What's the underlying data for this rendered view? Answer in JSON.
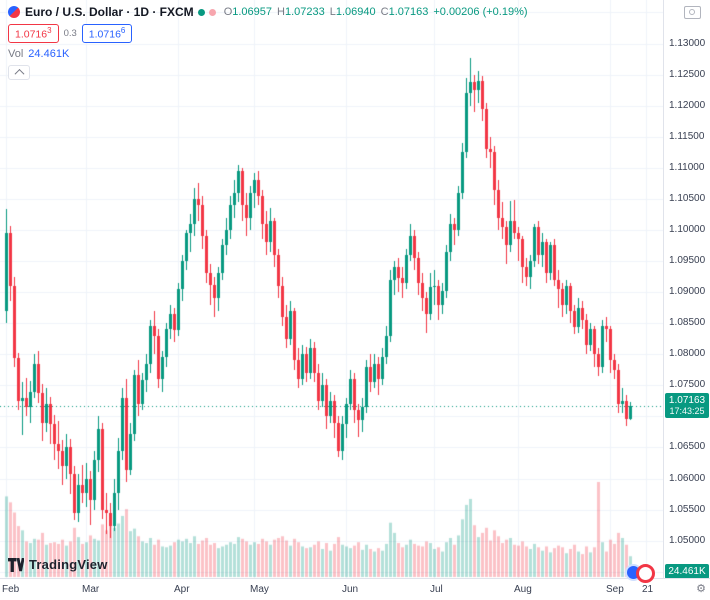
{
  "header": {
    "title": "Euro / U.S. Dollar · 1D · FXCM",
    "ohlc": {
      "open_label": "O",
      "open": "1.06957",
      "high_label": "H",
      "high": "1.07233",
      "low_label": "L",
      "low": "1.06940",
      "close_label": "C",
      "close": "1.07163",
      "change": "+0.00206 (+0.19%)"
    }
  },
  "quote_panel": {
    "bid": "1.0716",
    "bid_sup": "3",
    "spread": "0.3",
    "ask": "1.0716",
    "ask_sup": "6"
  },
  "volume_row": {
    "label": "Vol",
    "value": "24.461K"
  },
  "last_price": {
    "value": "1.07163",
    "countdown": "17:43:25"
  },
  "volume_axis_label": "24.461K",
  "branding": {
    "logo_text": "TradingView"
  },
  "colors": {
    "up": "#089981",
    "down": "#f23645",
    "accent_blue": "#2962ff",
    "muted": "#787b86",
    "grid": "#f0f3fa",
    "text": "#131722"
  },
  "chart_data": {
    "type": "candlestick",
    "symbol": "EUR/USD",
    "interval": "1D",
    "source": "FXCM",
    "visible_price_range": {
      "from": 1.044,
      "to": 1.137
    },
    "price_tick_step": 0.005,
    "price_ticks": [
      1.13,
      1.125,
      1.12,
      1.115,
      1.11,
      1.105,
      1.1,
      1.095,
      1.09,
      1.085,
      1.08,
      1.075,
      1.07,
      1.065,
      1.06,
      1.055,
      1.05
    ],
    "months": [
      {
        "label": "Feb",
        "index": 0
      },
      {
        "label": "Mar",
        "index": 20
      },
      {
        "label": "Apr",
        "index": 43
      },
      {
        "label": "May",
        "index": 62
      },
      {
        "label": "Jun",
        "index": 85
      },
      {
        "label": "Jul",
        "index": 107
      },
      {
        "label": "Aug",
        "index": 128
      },
      {
        "label": "Sep",
        "index": 151
      },
      {
        "label": "21",
        "index": 160
      }
    ],
    "columns": [
      "open",
      "high",
      "low",
      "close",
      "volume_k"
    ],
    "candles": [
      [
        1.087,
        1.1033,
        1.085,
        1.0995,
        95
      ],
      [
        1.0995,
        1.1007,
        1.0885,
        1.091,
        88
      ],
      [
        1.091,
        1.0925,
        1.078,
        1.0794,
        76
      ],
      [
        1.0794,
        1.0802,
        1.071,
        1.0725,
        60
      ],
      [
        1.0725,
        1.0755,
        1.067,
        1.073,
        55
      ],
      [
        1.073,
        1.0762,
        1.07,
        1.0715,
        42
      ],
      [
        1.0715,
        1.0757,
        1.069,
        1.074,
        40
      ],
      [
        1.074,
        1.08,
        1.073,
        1.0785,
        45
      ],
      [
        1.0785,
        1.0805,
        1.0722,
        1.0737,
        44
      ],
      [
        1.0737,
        1.0752,
        1.066,
        1.069,
        52
      ],
      [
        1.069,
        1.0745,
        1.0675,
        1.072,
        38
      ],
      [
        1.072,
        1.0732,
        1.0656,
        1.0688,
        40
      ],
      [
        1.0688,
        1.0702,
        1.063,
        1.0655,
        41
      ],
      [
        1.0655,
        1.0692,
        1.0615,
        1.0645,
        39
      ],
      [
        1.0645,
        1.0662,
        1.059,
        1.062,
        44
      ],
      [
        1.062,
        1.0672,
        1.06,
        1.065,
        37
      ],
      [
        1.065,
        1.0663,
        1.0575,
        1.0608,
        42
      ],
      [
        1.0608,
        1.062,
        1.0533,
        1.0545,
        58
      ],
      [
        1.0545,
        1.0607,
        1.053,
        1.059,
        47
      ],
      [
        1.059,
        1.0622,
        1.056,
        1.0577,
        39
      ],
      [
        1.0577,
        1.0625,
        1.0555,
        1.06,
        41
      ],
      [
        1.06,
        1.0612,
        1.0525,
        1.0566,
        49
      ],
      [
        1.0566,
        1.0645,
        1.055,
        1.063,
        45
      ],
      [
        1.063,
        1.07,
        1.061,
        1.068,
        43
      ],
      [
        1.068,
        1.069,
        1.0535,
        1.055,
        62
      ],
      [
        1.055,
        1.0576,
        1.051,
        1.0545,
        55
      ],
      [
        1.0545,
        1.056,
        1.0505,
        1.0524,
        66
      ],
      [
        1.0524,
        1.06,
        1.0515,
        1.0576,
        58
      ],
      [
        1.0576,
        1.0665,
        1.055,
        1.0645,
        63
      ],
      [
        1.0645,
        1.0745,
        1.063,
        1.073,
        72
      ],
      [
        1.073,
        1.076,
        1.0595,
        1.0613,
        80
      ],
      [
        1.0613,
        1.069,
        1.0605,
        1.0672,
        54
      ],
      [
        1.0672,
        1.0775,
        1.066,
        1.0766,
        57
      ],
      [
        1.0766,
        1.079,
        1.07,
        1.072,
        48
      ],
      [
        1.072,
        1.077,
        1.071,
        1.0759,
        42
      ],
      [
        1.0759,
        1.08,
        1.074,
        1.0785,
        40
      ],
      [
        1.0785,
        1.0855,
        1.077,
        1.0845,
        46
      ],
      [
        1.0845,
        1.087,
        1.08,
        1.083,
        38
      ],
      [
        1.083,
        1.084,
        1.0745,
        1.076,
        44
      ],
      [
        1.076,
        1.0805,
        1.074,
        1.0795,
        36
      ],
      [
        1.0795,
        1.085,
        1.078,
        1.084,
        35
      ],
      [
        1.084,
        1.088,
        1.0825,
        1.0865,
        37
      ],
      [
        1.0865,
        1.0875,
        1.082,
        1.0839,
        41
      ],
      [
        1.0839,
        1.0915,
        1.083,
        1.0905,
        44
      ],
      [
        1.0905,
        1.096,
        1.0885,
        1.095,
        42
      ],
      [
        1.095,
        1.1,
        1.0935,
        1.0995,
        45
      ],
      [
        1.0995,
        1.1025,
        1.0965,
        1.101,
        40
      ],
      [
        1.101,
        1.1068,
        1.099,
        1.105,
        48
      ],
      [
        1.105,
        1.1075,
        1.1015,
        1.104,
        39
      ],
      [
        1.104,
        1.1055,
        1.097,
        1.099,
        43
      ],
      [
        1.099,
        1.1,
        1.0915,
        1.093,
        46
      ],
      [
        1.093,
        1.0945,
        1.088,
        1.0912,
        38
      ],
      [
        1.0912,
        1.0925,
        1.086,
        1.089,
        40
      ],
      [
        1.089,
        1.094,
        1.087,
        1.093,
        34
      ],
      [
        1.093,
        1.0985,
        1.092,
        1.0975,
        36
      ],
      [
        1.0975,
        1.102,
        1.096,
        1.1,
        38
      ],
      [
        1.1,
        1.1055,
        1.0985,
        1.104,
        41
      ],
      [
        1.104,
        1.108,
        1.102,
        1.106,
        39
      ],
      [
        1.106,
        1.1105,
        1.1045,
        1.1095,
        47
      ],
      [
        1.1095,
        1.11,
        1.1015,
        1.104,
        45
      ],
      [
        1.104,
        1.106,
        1.099,
        1.1019,
        42
      ],
      [
        1.1019,
        1.107,
        1.1,
        1.106,
        38
      ],
      [
        1.106,
        1.1092,
        1.1035,
        1.108,
        41
      ],
      [
        1.108,
        1.1095,
        1.104,
        1.1055,
        39
      ],
      [
        1.1055,
        1.1065,
        1.0985,
        1.101,
        45
      ],
      [
        1.101,
        1.103,
        1.096,
        1.098,
        42
      ],
      [
        1.098,
        1.1035,
        1.0965,
        1.1015,
        38
      ],
      [
        1.1015,
        1.102,
        1.094,
        1.096,
        44
      ],
      [
        1.096,
        1.097,
        1.089,
        1.091,
        46
      ],
      [
        1.091,
        1.0925,
        1.0845,
        1.086,
        48
      ],
      [
        1.086,
        1.088,
        1.081,
        1.0825,
        43
      ],
      [
        1.0825,
        1.0885,
        1.0815,
        1.087,
        37
      ],
      [
        1.087,
        1.0875,
        1.0775,
        1.079,
        45
      ],
      [
        1.079,
        1.081,
        1.0745,
        1.076,
        41
      ],
      [
        1.076,
        1.0815,
        1.075,
        1.08,
        36
      ],
      [
        1.08,
        1.0812,
        1.0755,
        1.077,
        34
      ],
      [
        1.077,
        1.0825,
        1.076,
        1.081,
        35
      ],
      [
        1.081,
        1.082,
        1.0755,
        1.077,
        38
      ],
      [
        1.077,
        1.0785,
        1.071,
        1.0725,
        42
      ],
      [
        1.0725,
        1.077,
        1.0715,
        1.075,
        33
      ],
      [
        1.075,
        1.076,
        1.068,
        1.07,
        40
      ],
      [
        1.07,
        1.074,
        1.069,
        1.0725,
        31
      ],
      [
        1.0725,
        1.0735,
        1.0665,
        1.069,
        39
      ],
      [
        1.069,
        1.07,
        1.0635,
        1.0645,
        47
      ],
      [
        1.0645,
        1.07,
        1.063,
        1.0688,
        38
      ],
      [
        1.0688,
        1.073,
        1.0665,
        1.072,
        36
      ],
      [
        1.072,
        1.0775,
        1.071,
        1.076,
        34
      ],
      [
        1.076,
        1.077,
        1.069,
        1.071,
        37
      ],
      [
        1.071,
        1.072,
        1.0667,
        1.0695,
        41
      ],
      [
        1.0695,
        1.073,
        1.0675,
        1.0715,
        32
      ],
      [
        1.0715,
        1.079,
        1.0705,
        1.078,
        38
      ],
      [
        1.078,
        1.08,
        1.074,
        1.0755,
        33
      ],
      [
        1.0755,
        1.08,
        1.0745,
        1.0785,
        30
      ],
      [
        1.0785,
        1.0795,
        1.0735,
        1.076,
        34
      ],
      [
        1.076,
        1.081,
        1.075,
        1.0795,
        31
      ],
      [
        1.0795,
        1.0845,
        1.0785,
        1.083,
        39
      ],
      [
        1.083,
        1.0935,
        1.082,
        1.092,
        64
      ],
      [
        1.092,
        1.095,
        1.0895,
        1.094,
        52
      ],
      [
        1.094,
        1.0955,
        1.09,
        1.0922,
        40
      ],
      [
        1.0922,
        1.094,
        1.089,
        1.0915,
        35
      ],
      [
        1.0915,
        1.097,
        1.0905,
        1.096,
        38
      ],
      [
        1.096,
        1.101,
        1.095,
        1.099,
        44
      ],
      [
        1.099,
        1.1,
        1.0935,
        1.0955,
        39
      ],
      [
        1.0955,
        1.0965,
        1.0895,
        1.0915,
        37
      ],
      [
        1.0915,
        1.093,
        1.087,
        1.089,
        36
      ],
      [
        1.089,
        1.09,
        1.0835,
        1.0865,
        42
      ],
      [
        1.0865,
        1.093,
        1.0855,
        1.0909,
        40
      ],
      [
        1.0909,
        1.0935,
        1.088,
        1.091,
        33
      ],
      [
        1.091,
        1.092,
        1.0855,
        1.088,
        35
      ],
      [
        1.088,
        1.0915,
        1.0865,
        1.0902,
        30
      ],
      [
        1.0902,
        1.0975,
        1.089,
        1.0965,
        41
      ],
      [
        1.0965,
        1.1025,
        1.095,
        1.101,
        46
      ],
      [
        1.101,
        1.102,
        1.0975,
        1.1,
        38
      ],
      [
        1.1,
        1.107,
        1.099,
        1.106,
        49
      ],
      [
        1.106,
        1.114,
        1.105,
        1.1125,
        68
      ],
      [
        1.1125,
        1.1245,
        1.1115,
        1.122,
        85
      ],
      [
        1.122,
        1.1276,
        1.12,
        1.1238,
        92
      ],
      [
        1.1238,
        1.125,
        1.119,
        1.1225,
        61
      ],
      [
        1.1225,
        1.1255,
        1.1205,
        1.124,
        47
      ],
      [
        1.124,
        1.1248,
        1.1175,
        1.1195,
        52
      ],
      [
        1.1195,
        1.1205,
        1.1115,
        1.113,
        58
      ],
      [
        1.113,
        1.115,
        1.11,
        1.1125,
        43
      ],
      [
        1.1125,
        1.1135,
        1.104,
        1.1065,
        55
      ],
      [
        1.1065,
        1.108,
        1.1,
        1.102,
        48
      ],
      [
        1.102,
        1.1045,
        1.0985,
        1.1005,
        40
      ],
      [
        1.1005,
        1.1015,
        1.0945,
        1.0975,
        44
      ],
      [
        1.0975,
        1.1046,
        1.0965,
        1.1015,
        46
      ],
      [
        1.1015,
        1.1048,
        1.0985,
        1.0995,
        38
      ],
      [
        1.0995,
        1.1005,
        1.095,
        1.0985,
        37
      ],
      [
        1.0985,
        1.099,
        1.0915,
        1.094,
        42
      ],
      [
        1.094,
        1.0955,
        1.091,
        1.0925,
        36
      ],
      [
        1.0925,
        1.096,
        1.0905,
        1.095,
        33
      ],
      [
        1.095,
        1.101,
        1.094,
        1.1005,
        39
      ],
      [
        1.1005,
        1.1015,
        1.0945,
        1.096,
        35
      ],
      [
        1.096,
        1.0995,
        1.094,
        1.098,
        31
      ],
      [
        1.098,
        1.0985,
        1.0915,
        1.093,
        36
      ],
      [
        1.093,
        1.098,
        1.092,
        1.0975,
        29
      ],
      [
        1.0975,
        1.0985,
        1.091,
        1.092,
        34
      ],
      [
        1.092,
        1.0935,
        1.0875,
        1.0905,
        37
      ],
      [
        1.0905,
        1.0915,
        1.086,
        1.088,
        35
      ],
      [
        1.088,
        1.092,
        1.0865,
        1.091,
        28
      ],
      [
        1.091,
        1.0915,
        1.085,
        1.087,
        33
      ],
      [
        1.087,
        1.088,
        1.0832,
        1.0844,
        38
      ],
      [
        1.0844,
        1.089,
        1.0835,
        1.0875,
        30
      ],
      [
        1.0875,
        1.0885,
        1.084,
        1.0855,
        27
      ],
      [
        1.0855,
        1.0865,
        1.08,
        1.0815,
        36
      ],
      [
        1.0815,
        1.085,
        1.0805,
        1.084,
        29
      ],
      [
        1.084,
        1.0845,
        1.078,
        1.08,
        35
      ],
      [
        1.08,
        1.081,
        1.0765,
        1.078,
        112
      ],
      [
        1.078,
        1.0855,
        1.077,
        1.0845,
        41
      ],
      [
        1.0845,
        1.086,
        1.082,
        1.084,
        30
      ],
      [
        1.084,
        1.0845,
        1.077,
        1.079,
        44
      ],
      [
        1.079,
        1.08,
        1.076,
        1.0775,
        39
      ],
      [
        1.0775,
        1.0785,
        1.0705,
        1.072,
        52
      ],
      [
        1.072,
        1.0745,
        1.0705,
        1.0725,
        46
      ],
      [
        1.0725,
        1.0735,
        1.0685,
        1.0696,
        38
      ],
      [
        1.06957,
        1.07233,
        1.0694,
        1.07163,
        24.461
      ]
    ]
  }
}
